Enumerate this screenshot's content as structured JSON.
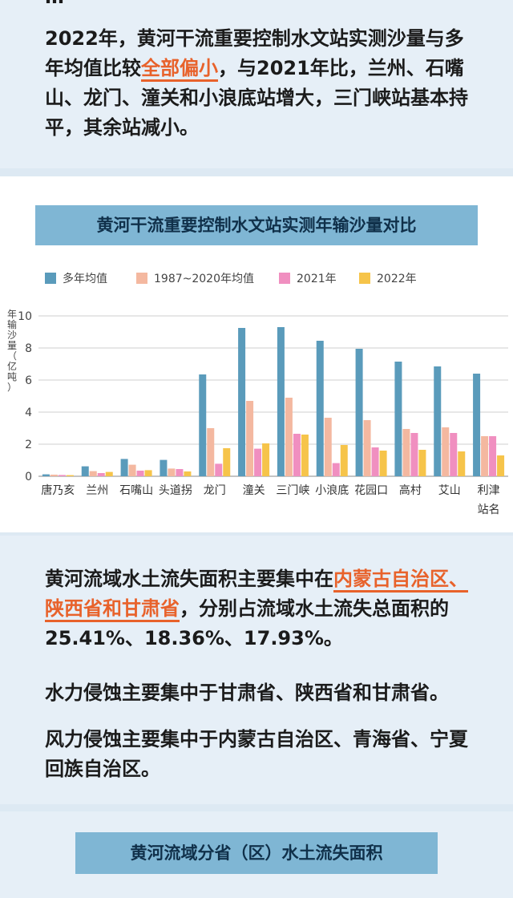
{
  "top_cut_text": "…",
  "intro": {
    "before": "2022年，黄河干流重要控制水文站实测沙量与多年均值比较",
    "highlight": "全部偏小",
    "after": "，与2021年比，兰州、石嘴山、龙门、潼关和小浪底站增大，三门峡站基本持平，其余站减小。"
  },
  "section1_title": "黄河干流重要控制水文站实测年输沙量对比",
  "chart_data": {
    "type": "bar",
    "title": "黄河干流重要控制水文站实测年输沙量对比",
    "ylabel": "年输沙量（亿吨）",
    "xlabel": "站名",
    "ylim": [
      0,
      10
    ],
    "yticks": [
      0,
      2,
      4,
      6,
      8,
      10
    ],
    "grid": true,
    "legend_position": "top",
    "categories": [
      "唐乃亥",
      "兰州",
      "石嘴山",
      "头道拐",
      "龙门",
      "潼关",
      "三门峡",
      "小浪底",
      "花园口",
      "高村",
      "艾山",
      "利津"
    ],
    "series": [
      {
        "name": "多年均值",
        "color": "#5a9bbb",
        "values": [
          0.12,
          0.62,
          1.08,
          1.02,
          6.35,
          9.25,
          9.3,
          8.45,
          7.95,
          7.15,
          6.85,
          6.4
        ]
      },
      {
        "name": "1987~2020年均值",
        "color": "#f4b8a0",
        "values": [
          0.1,
          0.32,
          0.72,
          0.48,
          3.0,
          4.7,
          4.9,
          3.65,
          3.5,
          2.95,
          3.05,
          2.5
        ]
      },
      {
        "name": "2021年",
        "color": "#f08fc0",
        "values": [
          0.08,
          0.2,
          0.35,
          0.45,
          0.78,
          1.72,
          2.65,
          0.82,
          1.8,
          2.7,
          2.7,
          2.5
        ]
      },
      {
        "name": "2022年",
        "color": "#f6c44a",
        "values": [
          0.07,
          0.27,
          0.38,
          0.3,
          1.75,
          2.05,
          2.6,
          1.95,
          1.6,
          1.65,
          1.55,
          1.3
        ]
      }
    ]
  },
  "para2": {
    "before": "黄河流域水土流失面积主要集中在",
    "highlight": "内蒙古自治区、陕西省和甘肃省",
    "after": "，分别占流域水土流失总面积的25.41%、18.36%、17.93%。"
  },
  "para3": "水力侵蚀主要集中于甘肃省、陕西省和甘肃省。",
  "para4": "风力侵蚀主要集中于内蒙古自治区、青海省、宁夏回族自治区。",
  "section2_title": "黄河流域分省（区）水土流失面积"
}
